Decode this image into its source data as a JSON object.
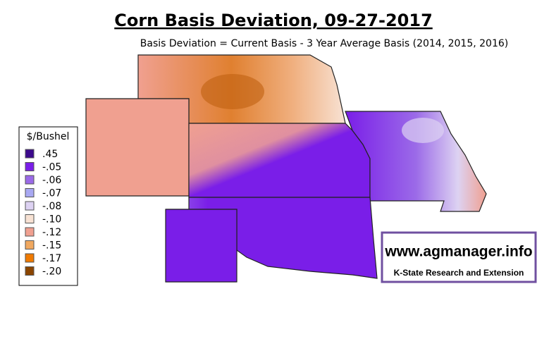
{
  "header": {
    "title": "Corn Basis Deviation, 09-27-2017",
    "subtitle": "Basis Deviation = Current Basis - 3 Year Average Basis (2014, 2015, 2016)"
  },
  "legend": {
    "title": "$/Bushel",
    "items": [
      {
        "label": ".45",
        "color": "#3c0a8c"
      },
      {
        "label": "-.05",
        "color": "#7a1ee8"
      },
      {
        "label": "-.06",
        "color": "#9b6ae8"
      },
      {
        "label": "-.07",
        "color": "#a8a8f2"
      },
      {
        "label": "-.08",
        "color": "#ddd2f2"
      },
      {
        "label": "-.10",
        "color": "#f8e2d4"
      },
      {
        "label": "-.12",
        "color": "#f0a090"
      },
      {
        "label": "-.15",
        "color": "#f0a860"
      },
      {
        "label": "-.17",
        "color": "#f07a00"
      },
      {
        "label": "-.20",
        "color": "#8b4500"
      }
    ]
  },
  "watermark": {
    "url": "www.agmanager.info",
    "org": "K-State Research and Extension"
  }
}
